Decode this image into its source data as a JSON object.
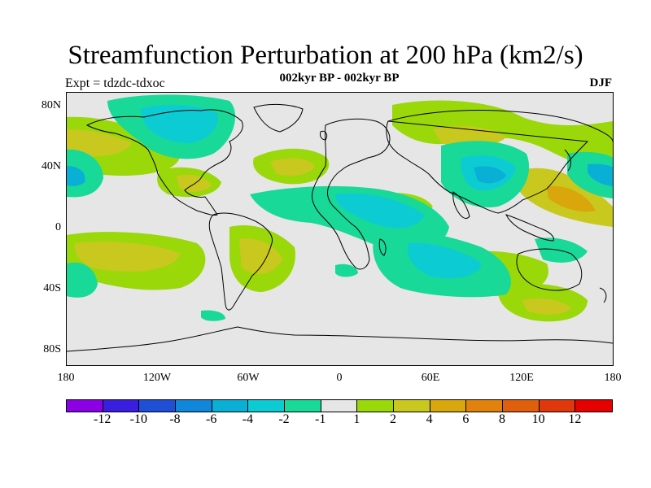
{
  "header": {
    "title": "Streamfunction Perturbation at 200 hPa (km2/s)",
    "subtitle": "002kyr BP - 002kyr BP",
    "left_label": "Expt = tdzdc-tdxoc",
    "right_label": "DJF"
  },
  "axes": {
    "y_labels": [
      "80N",
      "40N",
      "0",
      "40S",
      "80S"
    ],
    "x_labels": [
      "180",
      "120W",
      "60W",
      "0",
      "60E",
      "120E",
      "180"
    ]
  },
  "colorbar": {
    "labels": [
      "-12",
      "-10",
      "-8",
      "-6",
      "-4",
      "-2",
      "-1",
      "1",
      "2",
      "4",
      "6",
      "8",
      "10",
      "12"
    ],
    "colors": [
      "#8c00e6",
      "#3a1ee0",
      "#1f4fd6",
      "#1187db",
      "#0aafd6",
      "#0dcbd2",
      "#18d998",
      "#e6e6e6",
      "#9ad80a",
      "#c9c81e",
      "#d9a60c",
      "#e0820c",
      "#e05f0c",
      "#e0380c",
      "#e60000"
    ]
  },
  "field_colors": {
    "pos1": "#9ad80a",
    "pos2": "#c9c81e",
    "pos3": "#d9a60c",
    "neg1": "#18d998",
    "neg2": "#0dcbd2",
    "neg3": "#0aafd6"
  }
}
